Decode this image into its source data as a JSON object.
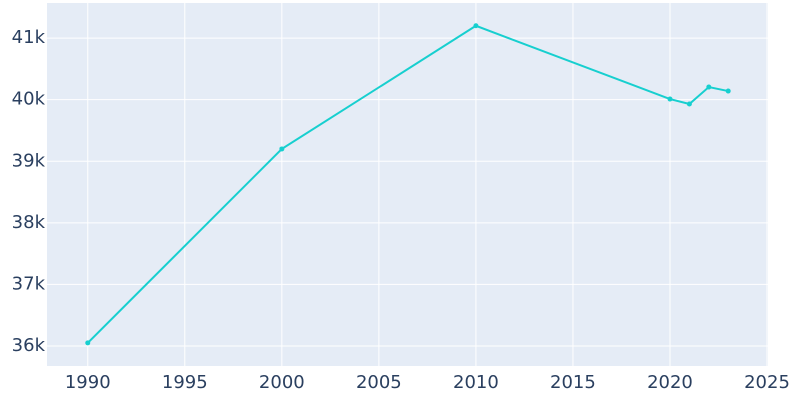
{
  "chart_data": {
    "type": "line",
    "x": [
      1990,
      2000,
      2010,
      2020,
      2021,
      2022,
      2023
    ],
    "series": [
      {
        "color": "#17cfcf",
        "values": [
          36050,
          39200,
          41200,
          40010,
          39930,
          40205,
          40140
        ]
      }
    ],
    "xlim": [
      1987.9,
      2025.05
    ],
    "xticks": [
      1990,
      1995,
      2000,
      2005,
      2010,
      2015,
      2020,
      2025
    ],
    "ylim": [
      35675,
      41570
    ],
    "yticks": [
      {
        "value": 36000,
        "label": "36k"
      },
      {
        "value": 37000,
        "label": "37k"
      },
      {
        "value": 38000,
        "label": "38k"
      },
      {
        "value": 39000,
        "label": "39k"
      },
      {
        "value": 40000,
        "label": "40k"
      },
      {
        "value": 41000,
        "label": "41k"
      }
    ],
    "grid": true
  }
}
